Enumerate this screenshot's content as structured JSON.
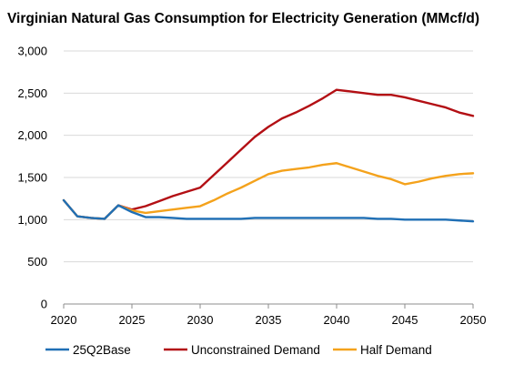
{
  "chart_data": {
    "type": "line",
    "title": "Virginian Natural Gas Consumption for Electricity Generation (MMcf/d)",
    "xlabel": "",
    "ylabel": "",
    "xlim": [
      2020,
      2050
    ],
    "ylim": [
      0,
      3000
    ],
    "y_ticks": [
      0,
      500,
      1000,
      1500,
      2000,
      2500,
      3000
    ],
    "y_tick_labels": [
      "0",
      "500",
      "1,000",
      "1,500",
      "2,000",
      "2,500",
      "3,000"
    ],
    "x_ticks": [
      2020,
      2025,
      2030,
      2035,
      2040,
      2045,
      2050
    ],
    "x_tick_labels": [
      "2020",
      "2025",
      "2030",
      "2035",
      "2040",
      "2045",
      "2050"
    ],
    "grid": true,
    "legend_position": "bottom",
    "series": [
      {
        "name": "25Q2Base",
        "color": "#1f6fb5",
        "x": [
          2020,
          2021,
          2022,
          2023,
          2024,
          2025,
          2026,
          2027,
          2028,
          2029,
          2030,
          2031,
          2032,
          2033,
          2034,
          2035,
          2036,
          2037,
          2038,
          2039,
          2040,
          2041,
          2042,
          2043,
          2044,
          2045,
          2046,
          2047,
          2048,
          2049,
          2050
        ],
        "values": [
          1230,
          1040,
          1020,
          1010,
          1170,
          1090,
          1030,
          1030,
          1020,
          1010,
          1010,
          1010,
          1010,
          1010,
          1020,
          1020,
          1020,
          1020,
          1020,
          1020,
          1020,
          1020,
          1020,
          1010,
          1010,
          1000,
          1000,
          1000,
          1000,
          990,
          980
        ]
      },
      {
        "name": "Unconstrained Demand",
        "color": "#b30f14",
        "x": [
          2020,
          2021,
          2022,
          2023,
          2024,
          2025,
          2026,
          2027,
          2028,
          2029,
          2030,
          2031,
          2032,
          2033,
          2034,
          2035,
          2036,
          2037,
          2038,
          2039,
          2040,
          2041,
          2042,
          2043,
          2044,
          2045,
          2046,
          2047,
          2048,
          2049,
          2050
        ],
        "values": [
          1230,
          1040,
          1020,
          1010,
          1170,
          1120,
          1160,
          1220,
          1280,
          1330,
          1380,
          1530,
          1680,
          1830,
          1980,
          2100,
          2200,
          2270,
          2350,
          2440,
          2540,
          2520,
          2500,
          2480,
          2480,
          2450,
          2410,
          2370,
          2330,
          2270,
          2230
        ]
      },
      {
        "name": "Half Demand",
        "color": "#f4a21c",
        "x": [
          2020,
          2021,
          2022,
          2023,
          2024,
          2025,
          2026,
          2027,
          2028,
          2029,
          2030,
          2031,
          2032,
          2033,
          2034,
          2035,
          2036,
          2037,
          2038,
          2039,
          2040,
          2041,
          2042,
          2043,
          2044,
          2045,
          2046,
          2047,
          2048,
          2049,
          2050
        ],
        "values": [
          1230,
          1040,
          1020,
          1010,
          1170,
          1110,
          1080,
          1100,
          1120,
          1140,
          1160,
          1230,
          1310,
          1380,
          1460,
          1540,
          1580,
          1600,
          1620,
          1650,
          1670,
          1620,
          1570,
          1520,
          1480,
          1420,
          1450,
          1490,
          1520,
          1540,
          1550
        ]
      }
    ]
  }
}
